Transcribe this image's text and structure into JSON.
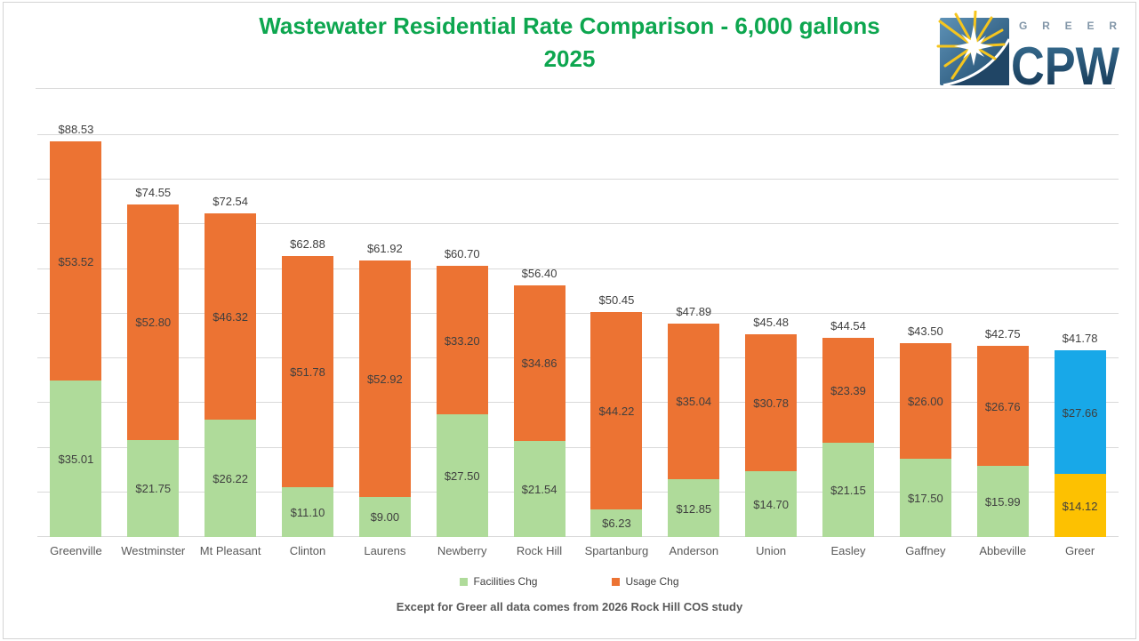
{
  "header": {
    "title_line1": "Wastewater Residential Rate Comparison - 6,000 gallons",
    "title_line2": "2025"
  },
  "logo": {
    "brand_top": "GREER",
    "brand_main": "CPW"
  },
  "chart_data": {
    "type": "bar",
    "stacked": true,
    "title": "Wastewater Residential Rate Comparison - 6,000 gallons 2025",
    "categories": [
      "Greenville",
      "Westminster",
      "Mt Pleasant",
      "Clinton",
      "Laurens",
      "Newberry",
      "Rock Hill",
      "Spartanburg",
      "Anderson",
      "Union",
      "Easley",
      "Gaffney",
      "Abbeville",
      "Greer"
    ],
    "series": [
      {
        "name": "Facilities Chg",
        "color": "#AFDB9A",
        "highlight_color": "#FDC101",
        "values": [
          35.01,
          21.75,
          26.22,
          11.1,
          9.0,
          27.5,
          21.54,
          6.23,
          12.85,
          14.7,
          21.15,
          17.5,
          15.99,
          14.12
        ]
      },
      {
        "name": "Usage Chg",
        "color": "#EC7333",
        "highlight_color": "#18A8E8",
        "values": [
          53.52,
          52.8,
          46.32,
          51.78,
          52.92,
          33.2,
          34.86,
          44.22,
          35.04,
          30.78,
          23.39,
          26.0,
          26.76,
          27.66
        ]
      }
    ],
    "totals": [
      88.53,
      74.55,
      72.54,
      62.88,
      61.92,
      60.7,
      56.4,
      50.45,
      47.89,
      45.48,
      44.54,
      43.5,
      42.75,
      41.78
    ],
    "highlight_category": "Greer",
    "ylim": [
      0,
      90
    ],
    "gridline_step": 10,
    "value_prefix": "$",
    "grid": "horizontal",
    "y_axis_labels_visible": false,
    "legend_position": "bottom"
  },
  "footnote": "Except for Greer all data comes from 2026 Rock Hill COS study",
  "colors": {
    "title_green": "#0DA64F",
    "gridline": "#D9D9D9",
    "bar_label": "#3F3F3F",
    "axis_label": "#595959",
    "footnote": "#595959"
  }
}
